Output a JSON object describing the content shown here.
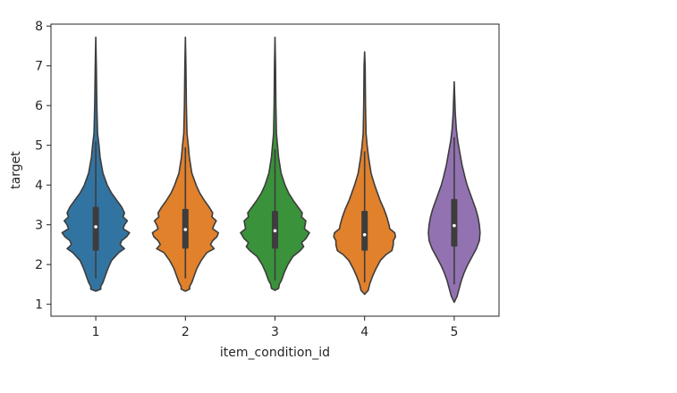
{
  "chart_data": {
    "type": "violin",
    "xlabel": "item_condition_id",
    "ylabel": "target",
    "categories": [
      "1",
      "2",
      "3",
      "4",
      "5"
    ],
    "ylim": [
      0.7,
      8.05
    ],
    "yticks": [
      "1",
      "2",
      "3",
      "4",
      "5",
      "6",
      "7",
      "8"
    ],
    "grid": false,
    "series": [
      {
        "category": "1",
        "color": "#3274a1",
        "min": 1.33,
        "max": 7.72,
        "q1": 2.35,
        "median": 2.95,
        "q3": 3.45,
        "whisker_low": 1.65,
        "whisker_high": 5.1,
        "density": [
          [
            1.33,
            0.0
          ],
          [
            1.38,
            0.07
          ],
          [
            1.45,
            0.07
          ],
          [
            1.55,
            0.1
          ],
          [
            1.7,
            0.13
          ],
          [
            1.9,
            0.17
          ],
          [
            2.1,
            0.22
          ],
          [
            2.3,
            0.32
          ],
          [
            2.4,
            0.4
          ],
          [
            2.5,
            0.34
          ],
          [
            2.6,
            0.36
          ],
          [
            2.7,
            0.43
          ],
          [
            2.8,
            0.47
          ],
          [
            2.9,
            0.38
          ],
          [
            3.0,
            0.4
          ],
          [
            3.1,
            0.44
          ],
          [
            3.2,
            0.38
          ],
          [
            3.3,
            0.4
          ],
          [
            3.45,
            0.36
          ],
          [
            3.6,
            0.3
          ],
          [
            3.8,
            0.22
          ],
          [
            4.0,
            0.16
          ],
          [
            4.3,
            0.1
          ],
          [
            4.7,
            0.06
          ],
          [
            5.0,
            0.045
          ],
          [
            5.3,
            0.025
          ],
          [
            6.0,
            0.015
          ],
          [
            7.0,
            0.008
          ],
          [
            7.72,
            0.0
          ]
        ]
      },
      {
        "category": "2",
        "color": "#e1812c",
        "min": 1.33,
        "max": 7.72,
        "q1": 2.4,
        "median": 2.88,
        "q3": 3.4,
        "whisker_low": 1.65,
        "whisker_high": 4.95,
        "density": [
          [
            1.33,
            0.0
          ],
          [
            1.38,
            0.06
          ],
          [
            1.45,
            0.06
          ],
          [
            1.55,
            0.09
          ],
          [
            1.7,
            0.12
          ],
          [
            1.9,
            0.16
          ],
          [
            2.1,
            0.22
          ],
          [
            2.3,
            0.3
          ],
          [
            2.4,
            0.4
          ],
          [
            2.5,
            0.35
          ],
          [
            2.6,
            0.38
          ],
          [
            2.7,
            0.44
          ],
          [
            2.8,
            0.46
          ],
          [
            2.9,
            0.38
          ],
          [
            3.0,
            0.4
          ],
          [
            3.1,
            0.43
          ],
          [
            3.2,
            0.37
          ],
          [
            3.3,
            0.38
          ],
          [
            3.45,
            0.33
          ],
          [
            3.6,
            0.27
          ],
          [
            3.8,
            0.2
          ],
          [
            4.0,
            0.15
          ],
          [
            4.3,
            0.09
          ],
          [
            4.7,
            0.055
          ],
          [
            5.0,
            0.04
          ],
          [
            5.3,
            0.022
          ],
          [
            6.0,
            0.014
          ],
          [
            7.0,
            0.008
          ],
          [
            7.72,
            0.0
          ]
        ]
      },
      {
        "category": "3",
        "color": "#3a923a",
        "min": 1.35,
        "max": 7.72,
        "q1": 2.4,
        "median": 2.85,
        "q3": 3.35,
        "whisker_low": 1.6,
        "whisker_high": 4.9,
        "density": [
          [
            1.35,
            0.0
          ],
          [
            1.4,
            0.05
          ],
          [
            1.5,
            0.06
          ],
          [
            1.6,
            0.09
          ],
          [
            1.8,
            0.13
          ],
          [
            2.0,
            0.18
          ],
          [
            2.2,
            0.25
          ],
          [
            2.35,
            0.35
          ],
          [
            2.45,
            0.4
          ],
          [
            2.55,
            0.37
          ],
          [
            2.65,
            0.43
          ],
          [
            2.8,
            0.48
          ],
          [
            2.9,
            0.41
          ],
          [
            3.0,
            0.42
          ],
          [
            3.1,
            0.43
          ],
          [
            3.2,
            0.37
          ],
          [
            3.3,
            0.38
          ],
          [
            3.45,
            0.32
          ],
          [
            3.6,
            0.26
          ],
          [
            3.8,
            0.19
          ],
          [
            4.0,
            0.14
          ],
          [
            4.3,
            0.085
          ],
          [
            4.7,
            0.05
          ],
          [
            5.0,
            0.035
          ],
          [
            5.3,
            0.02
          ],
          [
            6.0,
            0.013
          ],
          [
            7.0,
            0.008
          ],
          [
            7.72,
            0.0
          ]
        ]
      },
      {
        "category": "4",
        "color": "#e1812c",
        "min": 1.25,
        "max": 7.35,
        "q1": 2.35,
        "median": 2.75,
        "q3": 3.35,
        "whisker_low": 1.55,
        "whisker_high": 4.85,
        "density": [
          [
            1.25,
            0.0
          ],
          [
            1.35,
            0.05
          ],
          [
            1.5,
            0.07
          ],
          [
            1.7,
            0.11
          ],
          [
            1.9,
            0.16
          ],
          [
            2.1,
            0.22
          ],
          [
            2.25,
            0.3
          ],
          [
            2.35,
            0.38
          ],
          [
            2.5,
            0.4
          ],
          [
            2.6,
            0.4
          ],
          [
            2.7,
            0.43
          ],
          [
            2.8,
            0.42
          ],
          [
            2.9,
            0.35
          ],
          [
            3.0,
            0.34
          ],
          [
            3.2,
            0.31
          ],
          [
            3.4,
            0.27
          ],
          [
            3.6,
            0.22
          ],
          [
            3.8,
            0.18
          ],
          [
            4.0,
            0.14
          ],
          [
            4.3,
            0.09
          ],
          [
            4.7,
            0.055
          ],
          [
            5.0,
            0.035
          ],
          [
            5.3,
            0.02
          ],
          [
            6.0,
            0.012
          ],
          [
            7.0,
            0.007
          ],
          [
            7.35,
            0.0
          ]
        ]
      },
      {
        "category": "5",
        "color": "#9372b2",
        "min": 1.05,
        "max": 6.6,
        "q1": 2.45,
        "median": 2.98,
        "q3": 3.65,
        "whisker_low": 1.5,
        "whisker_high": 5.2,
        "density": [
          [
            1.05,
            0.0
          ],
          [
            1.2,
            0.04
          ],
          [
            1.4,
            0.07
          ],
          [
            1.6,
            0.1
          ],
          [
            1.8,
            0.14
          ],
          [
            2.0,
            0.19
          ],
          [
            2.2,
            0.25
          ],
          [
            2.4,
            0.31
          ],
          [
            2.6,
            0.35
          ],
          [
            2.8,
            0.36
          ],
          [
            3.0,
            0.35
          ],
          [
            3.2,
            0.33
          ],
          [
            3.4,
            0.3
          ],
          [
            3.6,
            0.26
          ],
          [
            3.8,
            0.22
          ],
          [
            4.0,
            0.18
          ],
          [
            4.2,
            0.15
          ],
          [
            4.5,
            0.11
          ],
          [
            4.8,
            0.08
          ],
          [
            5.1,
            0.05
          ],
          [
            5.4,
            0.03
          ],
          [
            5.8,
            0.015
          ],
          [
            6.2,
            0.008
          ],
          [
            6.6,
            0.0
          ]
        ]
      }
    ]
  }
}
